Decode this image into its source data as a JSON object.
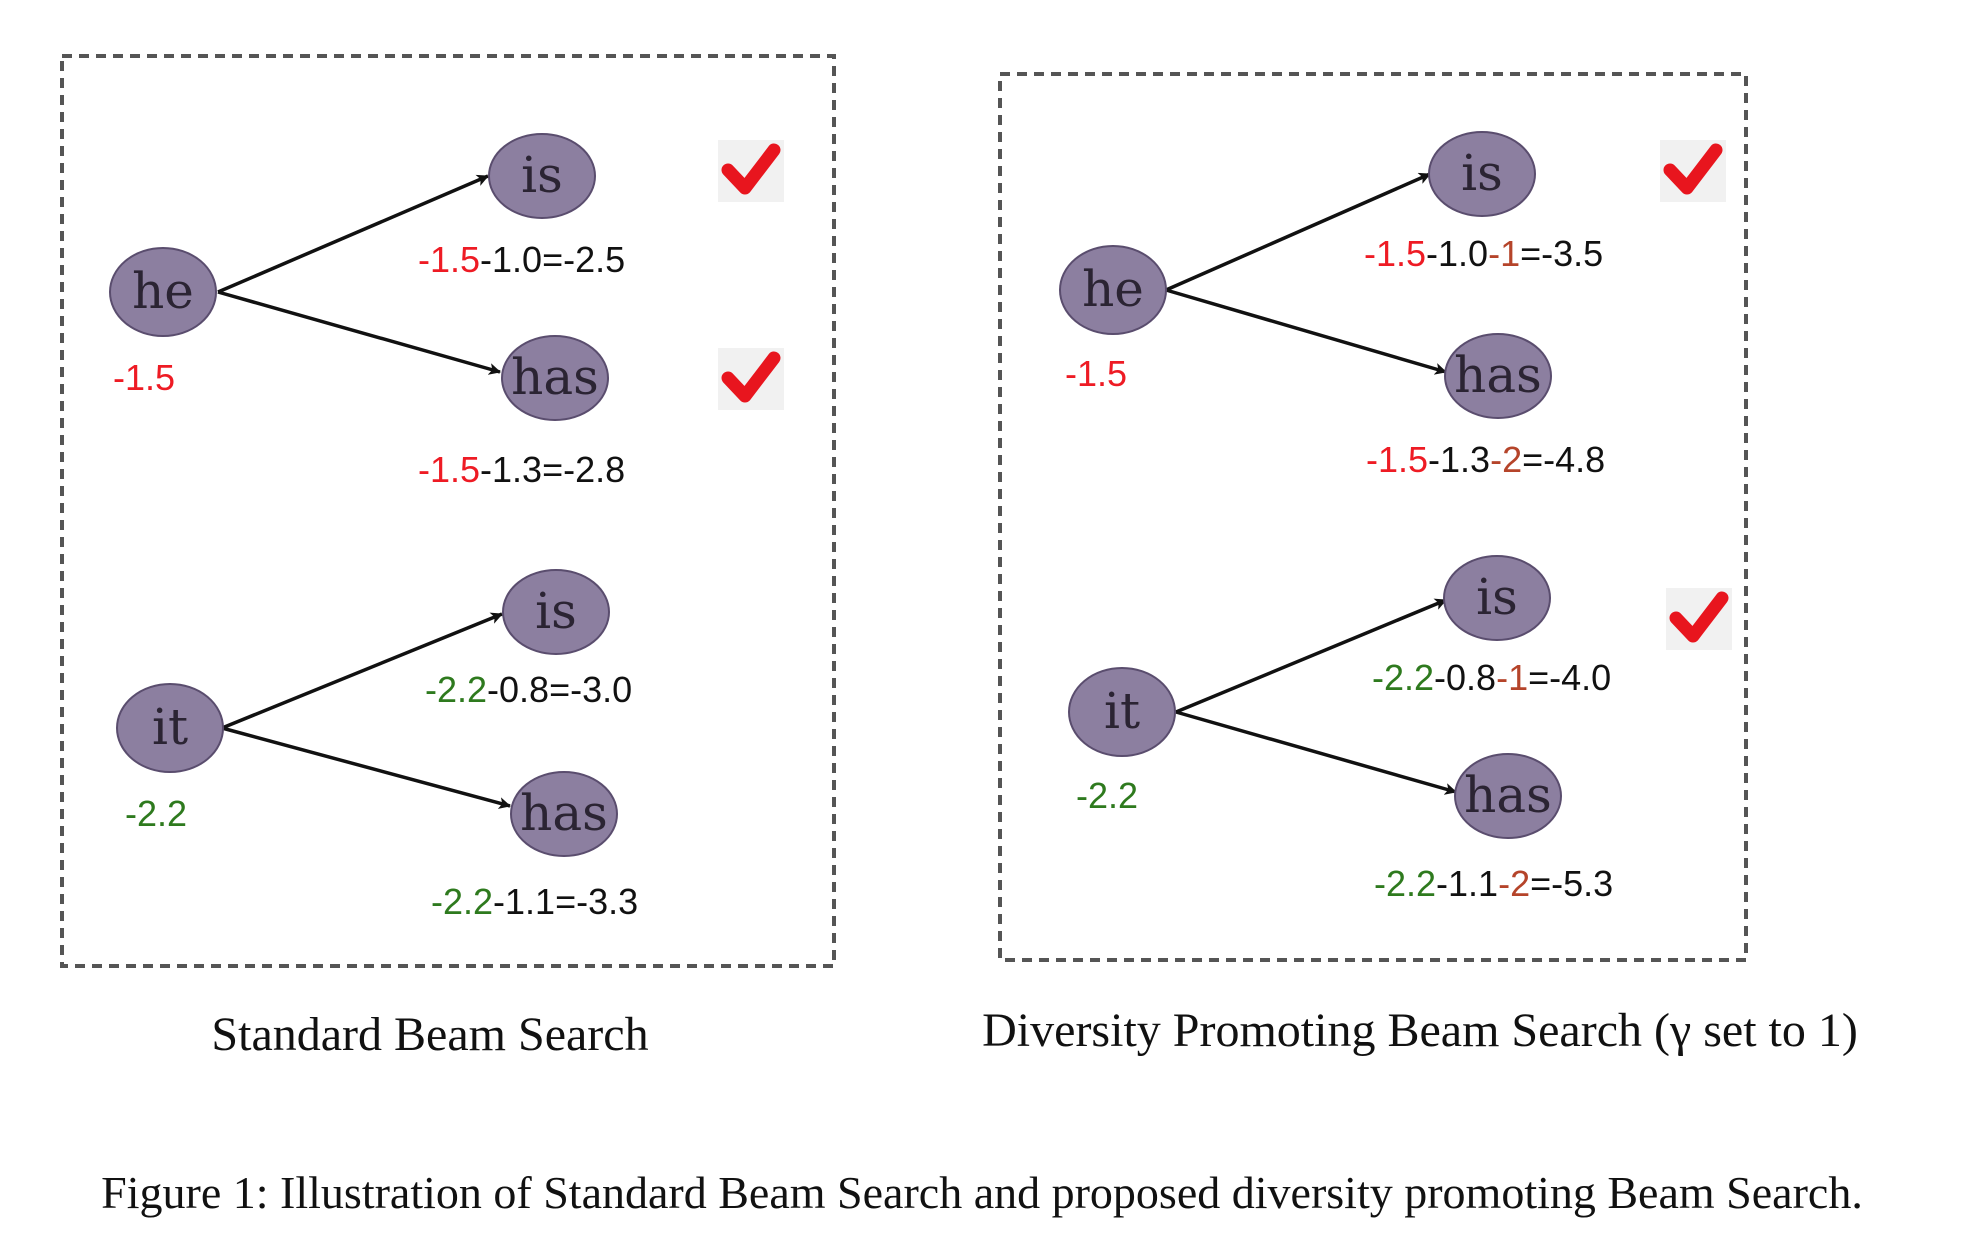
{
  "panels": {
    "standard": {
      "caption": "Standard Beam Search",
      "root_he": {
        "label": "he",
        "score": "-1.5"
      },
      "root_it": {
        "label": "it",
        "score": "-2.2"
      },
      "he_is": {
        "label": "is",
        "base": "-1.5",
        "rest": "-1.0=-2.5",
        "selected": true
      },
      "he_has": {
        "label": "has",
        "base": "-1.5",
        "rest": "-1.3=-2.8",
        "selected": true
      },
      "it_is": {
        "label": "is",
        "base": "-2.2",
        "rest": "-0.8=-3.0",
        "selected": false
      },
      "it_has": {
        "label": "has",
        "base": "-2.2",
        "rest": "-1.1=-3.3",
        "selected": false
      }
    },
    "diverse": {
      "caption": "Diversity Promoting Beam Search (γ set to 1)",
      "root_he": {
        "label": "he",
        "score": "-1.5"
      },
      "root_it": {
        "label": "it",
        "score": "-2.2"
      },
      "he_is": {
        "label": "is",
        "base": "-1.5",
        "mid": "-1.0",
        "pen": "-1",
        "total": "=-3.5",
        "selected": true
      },
      "he_has": {
        "label": "has",
        "base": "-1.5",
        "mid": "-1.3",
        "pen": "-2",
        "total": "=-4.8",
        "selected": false
      },
      "it_is": {
        "label": "is",
        "base": "-2.2",
        "mid": "-0.8",
        "pen": "-1",
        "total": "=-4.0",
        "selected": true
      },
      "it_has": {
        "label": "has",
        "base": "-2.2",
        "mid": "-1.1",
        "pen": "-2",
        "total": "=-5.3",
        "selected": false
      }
    }
  },
  "figure_caption": "Figure 1: Illustration of Standard Beam Search and proposed diversity promoting Beam Search.",
  "colors": {
    "node_fill": "#8c7fa0",
    "red": "#ee1b24",
    "green": "#2e7a1e",
    "penalty": "#b5442a",
    "check": "#e8151e"
  },
  "icons": {
    "selected": "check-icon"
  }
}
